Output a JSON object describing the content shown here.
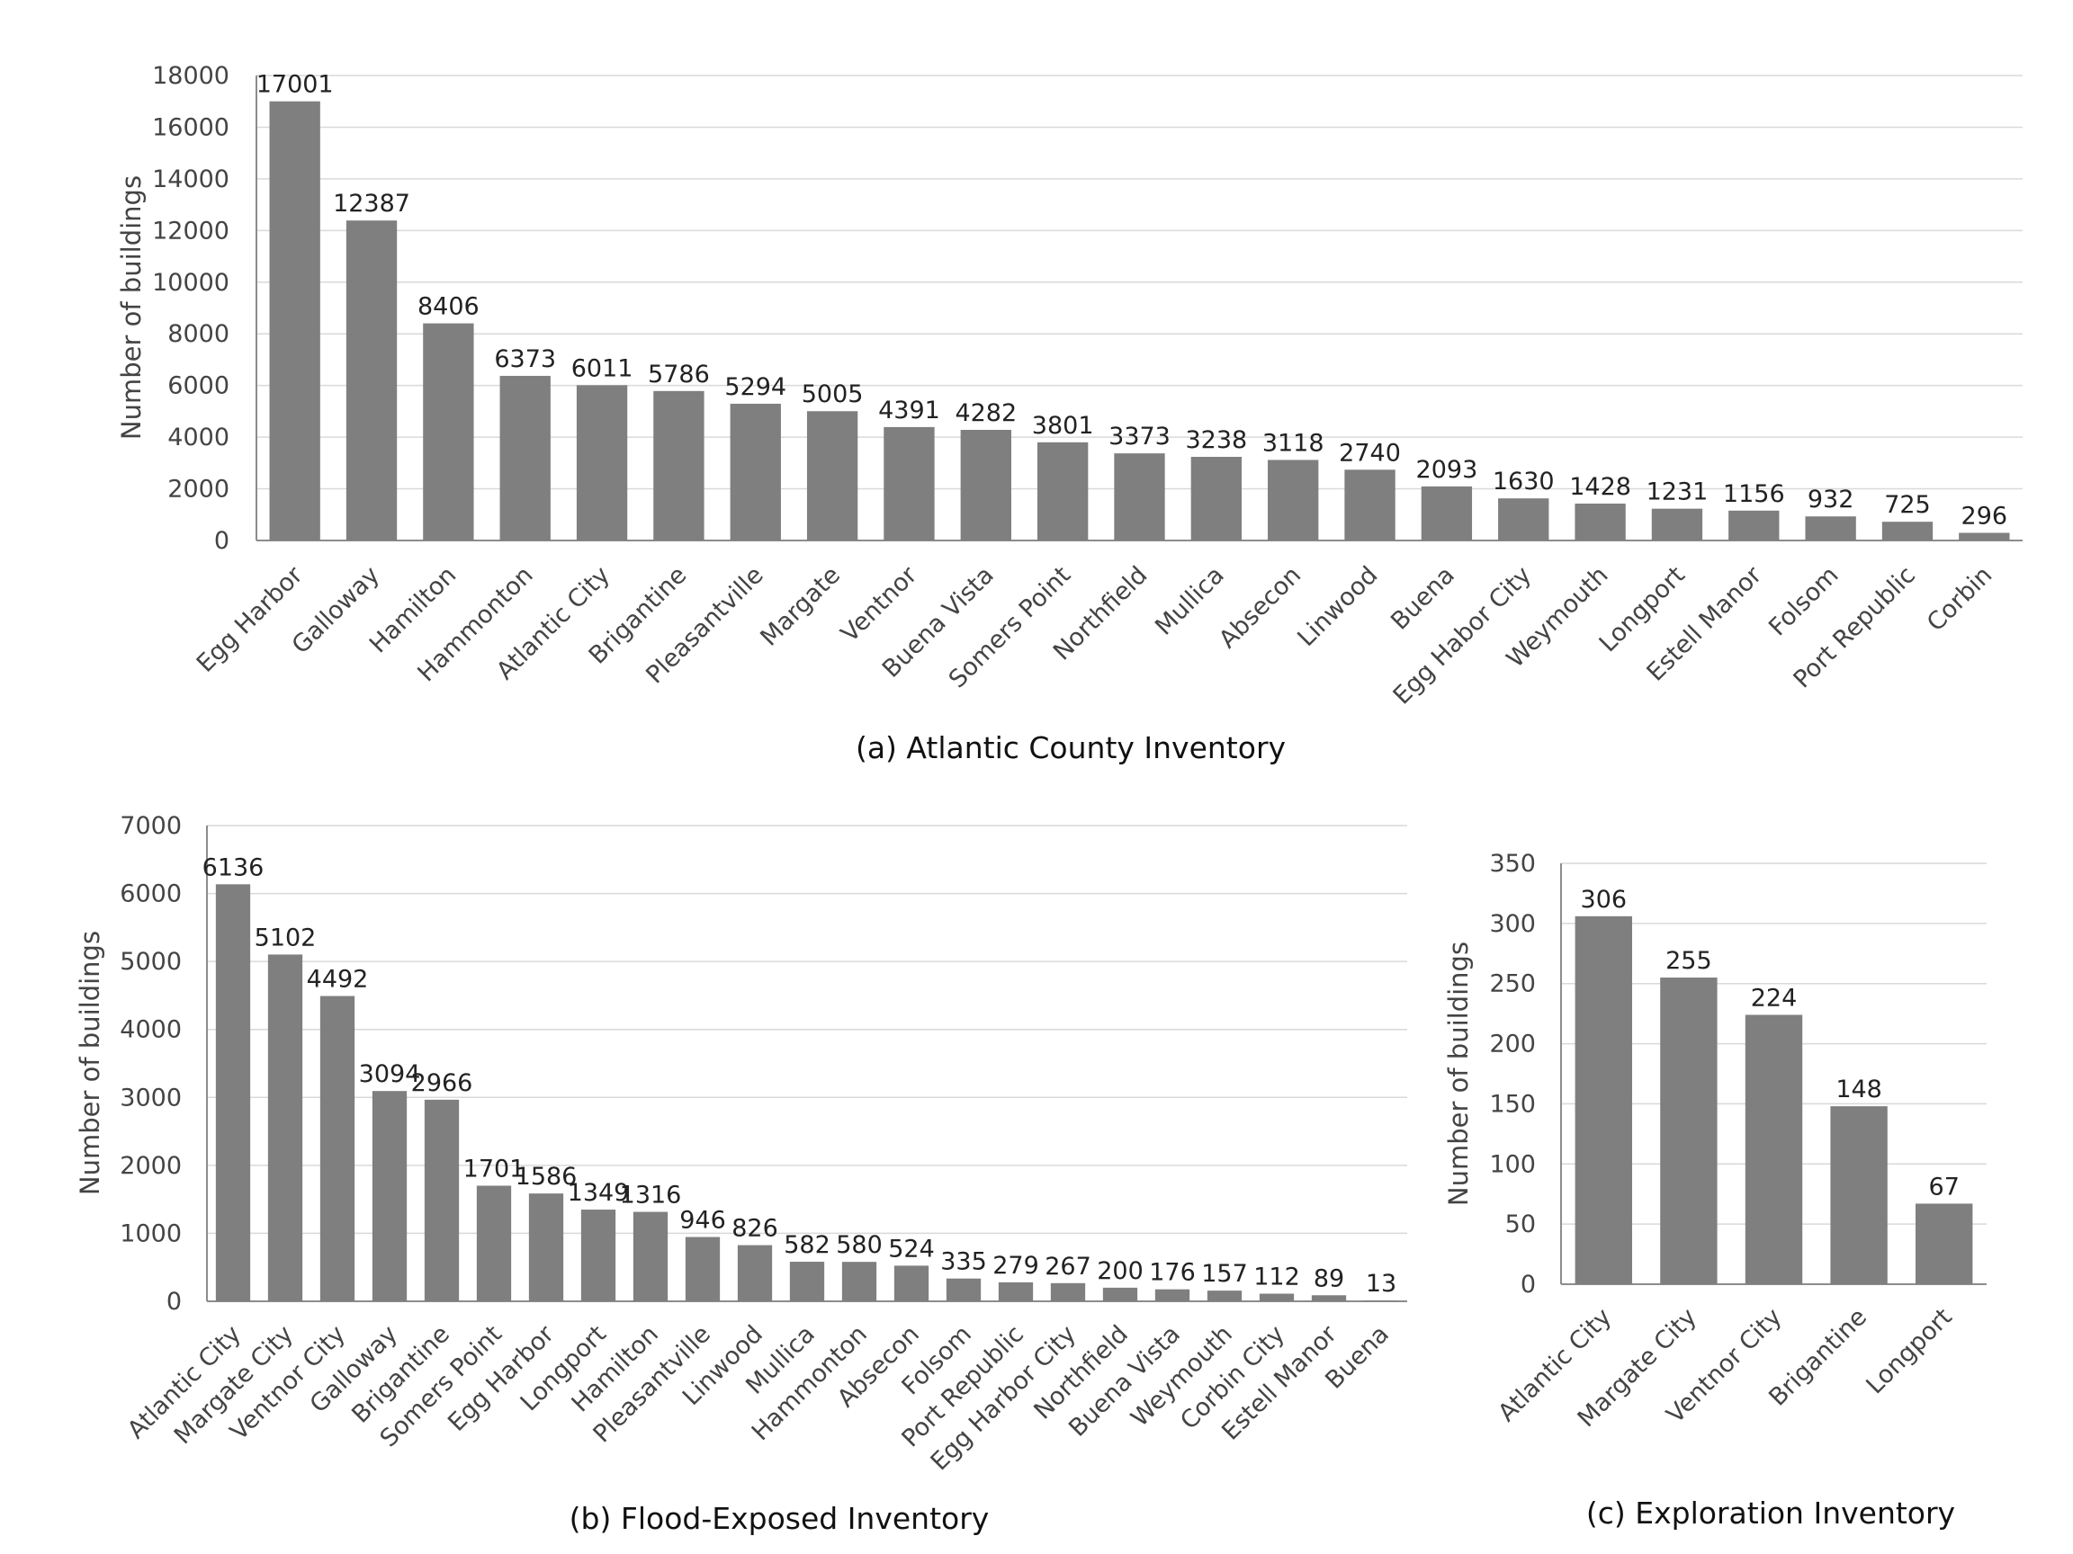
{
  "chart_data": [
    {
      "type": "bar",
      "title": "",
      "caption": "(a) Atlantic County Inventory",
      "xlabel": "",
      "ylabel": "Number of buildings",
      "ylim": [
        0,
        18000
      ],
      "yticks": [
        0,
        2000,
        4000,
        6000,
        8000,
        10000,
        12000,
        14000,
        16000,
        18000
      ],
      "grid": true,
      "categories": [
        "Egg Harbor",
        "Galloway",
        "Hamilton",
        "Hammonton",
        "Atlantic City",
        "Brigantine",
        "Pleasantville",
        "Margate",
        "Ventnor",
        "Buena Vista",
        "Somers Point",
        "Northfield",
        "Mullica",
        "Absecon",
        "Linwood",
        "Buena",
        "Egg Habor City",
        "Weymouth",
        "Longport",
        "Estell Manor",
        "Folsom",
        "Port Republic",
        "Corbin"
      ],
      "values": [
        17001,
        12387,
        8406,
        6373,
        6011,
        5786,
        5294,
        5005,
        4391,
        4282,
        3801,
        3373,
        3238,
        3118,
        2740,
        2093,
        1630,
        1428,
        1231,
        1156,
        932,
        725,
        296
      ]
    },
    {
      "type": "bar",
      "title": "",
      "caption": "(b) Flood-Exposed Inventory",
      "xlabel": "",
      "ylabel": "Number of buildings",
      "ylim": [
        0,
        7000
      ],
      "yticks": [
        0,
        1000,
        2000,
        3000,
        4000,
        5000,
        6000,
        7000
      ],
      "grid": true,
      "categories": [
        "Atlantic City",
        "Margate City",
        "Ventnor City",
        "Galloway",
        "Brigantine",
        "Somers Point",
        "Egg Harbor",
        "Longport",
        "Hamilton",
        "Pleasantville",
        "Linwood",
        "Mullica",
        "Hammonton",
        "Absecon",
        "Folsom",
        "Port Republic",
        "Egg Harbor City",
        "Northfield",
        "Buena Vista",
        "Weymouth",
        "Corbin City",
        "Estell Manor",
        "Buena"
      ],
      "values": [
        6136,
        5102,
        4492,
        3094,
        2966,
        1701,
        1586,
        1349,
        1316,
        946,
        826,
        582,
        580,
        524,
        335,
        279,
        267,
        200,
        176,
        157,
        112,
        89,
        13
      ]
    },
    {
      "type": "bar",
      "title": "",
      "caption": "(c) Exploration Inventory",
      "xlabel": "",
      "ylabel": "Number of buildings",
      "ylim": [
        0,
        350
      ],
      "yticks": [
        0,
        50,
        100,
        150,
        200,
        250,
        300,
        350
      ],
      "grid": true,
      "categories": [
        "Atlantic City",
        "Margate City",
        "Ventnor City",
        "Brigantine",
        "Longport"
      ],
      "values": [
        306,
        255,
        224,
        148,
        67
      ]
    }
  ]
}
